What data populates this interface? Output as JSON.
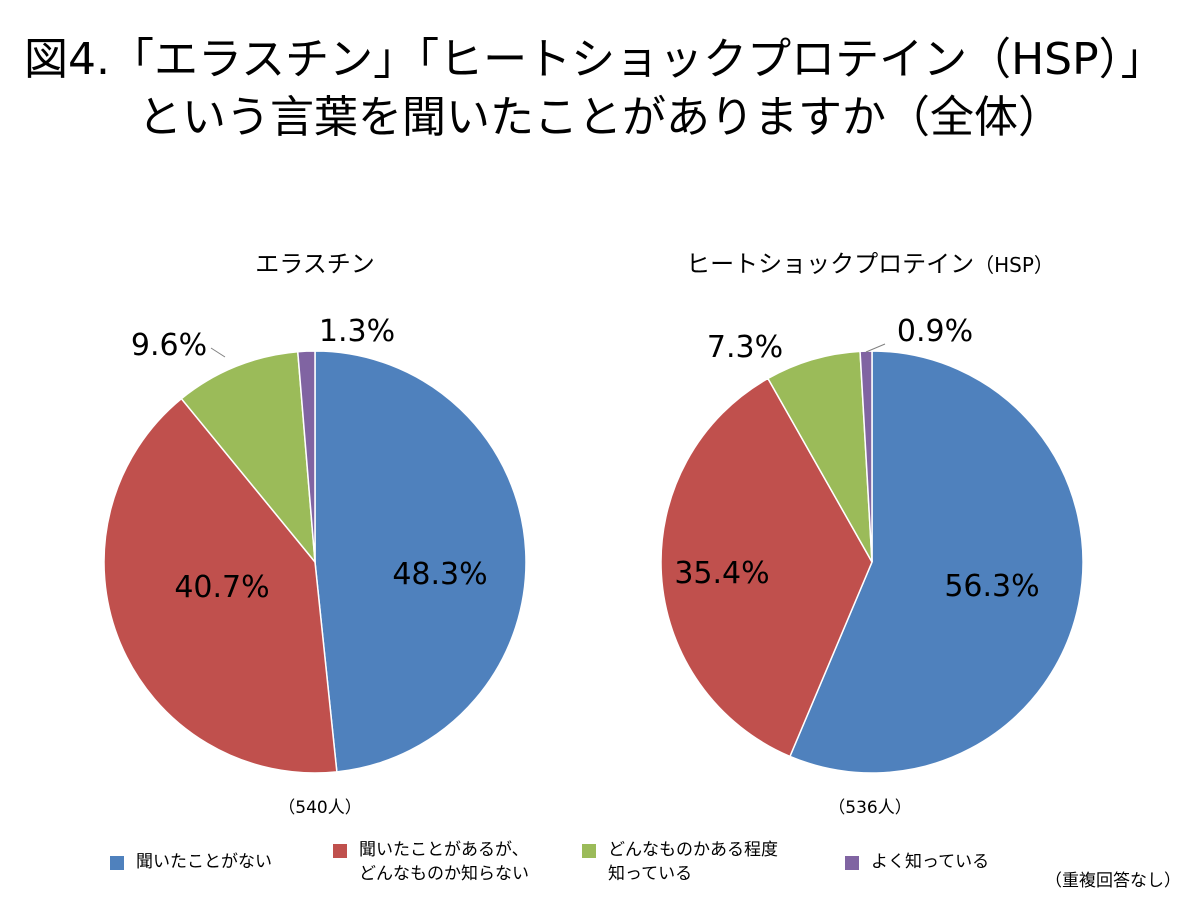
{
  "title": {
    "line1": "図4.「エラスチン」「ヒートショックプロテイン（HSP）」",
    "line2": "という言葉を聞いたことがありますか（全体）"
  },
  "chart_data": [
    {
      "type": "pie",
      "title": "エラスチン",
      "sample": "（540人）",
      "labels": [
        "聞いたことがない",
        "聞いたことがあるが、どんなものか知らない",
        "どんなものかある程度知っている",
        "よく知っている"
      ],
      "values": [
        48.3,
        40.7,
        9.6,
        1.3
      ],
      "value_labels": [
        "48.3%",
        "40.7%",
        "9.6%",
        "1.3%"
      ],
      "colors": [
        "#4f81bd",
        "#c0504d",
        "#9bbb59",
        "#8064a2"
      ]
    },
    {
      "type": "pie",
      "title": "ヒートショックプロテイン",
      "title_suffix": "（HSP）",
      "sample": "（536人）",
      "labels": [
        "聞いたことがない",
        "聞いたことがあるが、どんなものか知らない",
        "どんなものかある程度知っている",
        "よく知っている"
      ],
      "values": [
        56.3,
        35.4,
        7.3,
        0.9
      ],
      "value_labels": [
        "56.3%",
        "35.4%",
        "7.3%",
        "0.9%"
      ],
      "colors": [
        "#4f81bd",
        "#c0504d",
        "#9bbb59",
        "#8064a2"
      ]
    }
  ],
  "legend": [
    {
      "label": "聞いたことがない",
      "color": "#4f81bd"
    },
    {
      "label": "聞いたことがあるが、\nどんなものか知らない",
      "color": "#c0504d"
    },
    {
      "label": "どんなものかある程度\n知っている",
      "color": "#9bbb59"
    },
    {
      "label": "よく知っている",
      "color": "#8064a2"
    }
  ],
  "note": "（重複回答なし）"
}
